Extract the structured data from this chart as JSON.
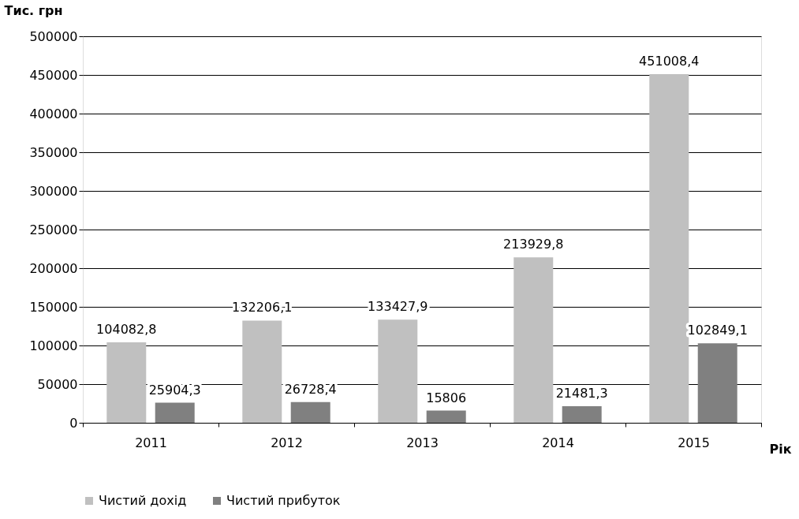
{
  "chart_data": {
    "type": "bar",
    "ylabel": "Тис. грн",
    "xlabel": "Рік",
    "categories": [
      "2011",
      "2012",
      "2013",
      "2014",
      "2015"
    ],
    "series": [
      {
        "name": "Чистий дохід",
        "color": "#c0c0c0",
        "values": [
          104082.8,
          132206.1,
          133427.9,
          213929.8,
          451008.4
        ],
        "value_labels": [
          "104082,8",
          "132206,1",
          "133427,9",
          "213929,8",
          "451008,4"
        ]
      },
      {
        "name": "Чистий прибуток",
        "color": "#808080",
        "values": [
          25904.3,
          26728.4,
          15806,
          21481.3,
          102849.1
        ],
        "value_labels": [
          "25904,3",
          "26728,4",
          "15806",
          "21481,3",
          "102849,1"
        ]
      }
    ],
    "ylim": [
      0,
      500000
    ],
    "yticks": [
      0,
      50000,
      100000,
      150000,
      200000,
      250000,
      300000,
      350000,
      400000,
      450000,
      500000
    ],
    "grid": "y",
    "legend": "bottom"
  }
}
